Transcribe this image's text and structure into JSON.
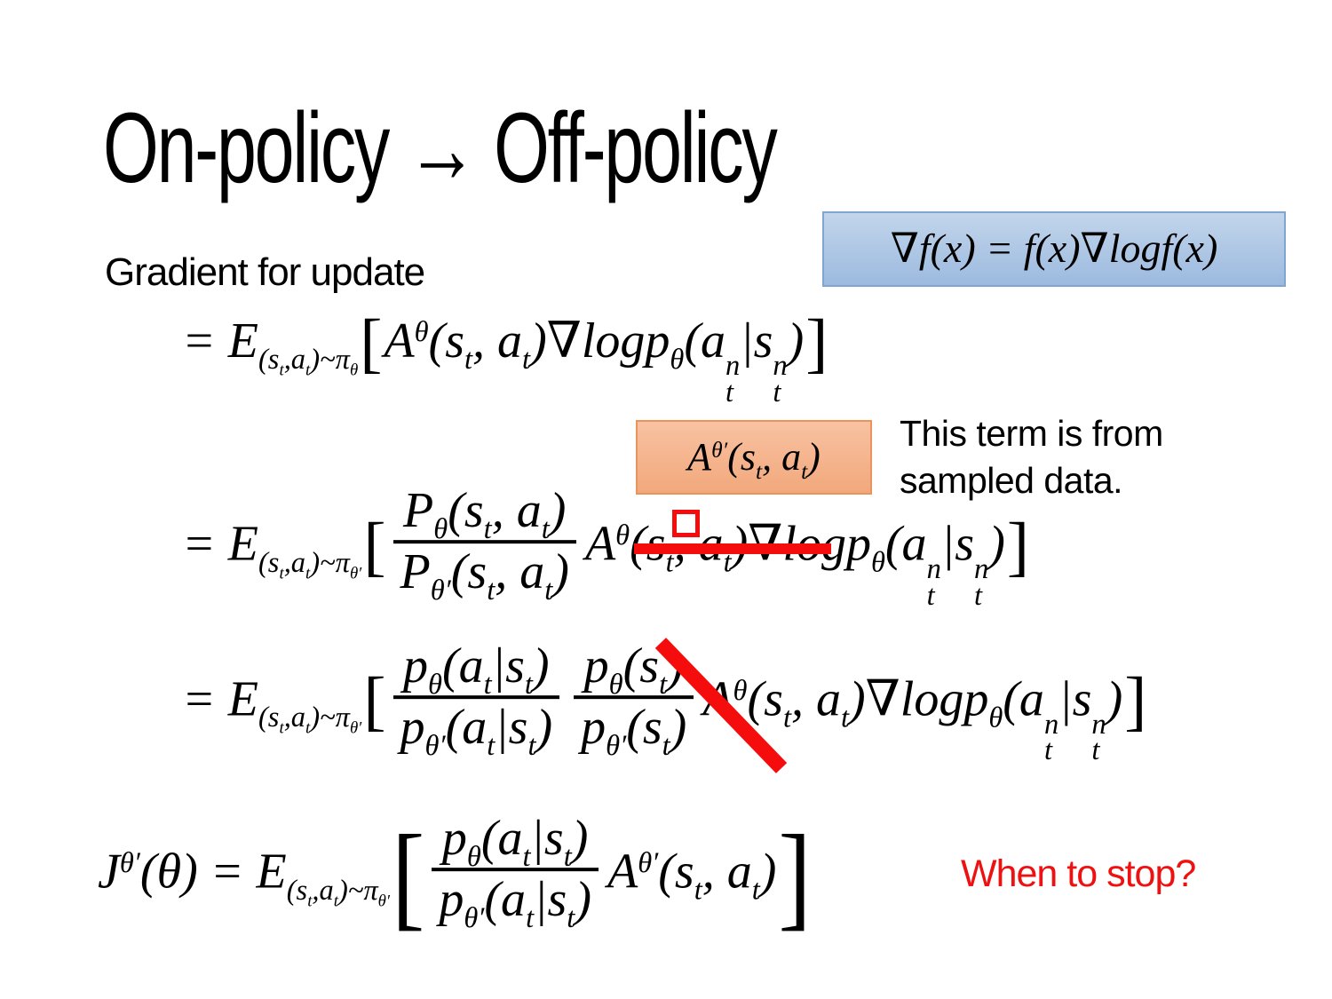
{
  "slide": {
    "title": "On-policy → Off-policy",
    "gradient_label": "Gradient for update",
    "note_line1": "This term is from",
    "note_line2": "sampled data.",
    "when_to_stop": "When to stop?"
  },
  "colors": {
    "annotation_red": "#f50d0d",
    "question_red": "#ee1111",
    "blue_box_fill_top": "#c2d5eb",
    "blue_box_fill_bottom": "#9cbadf",
    "blue_box_border": "#7fa5d2",
    "orange_box_fill_top": "#f8c2a2",
    "orange_box_fill_bottom": "#f2a87c",
    "orange_box_border": "#e9945c",
    "text_black": "#000000"
  },
  "equations": {
    "identity": [
      "∇f(x) = f(x)∇logf(x)"
    ],
    "advantage": [
      "A",
      {
        "sup": "θ′"
      },
      "(s",
      {
        "sub": "t"
      },
      ", a",
      {
        "sub": "t"
      },
      ")"
    ],
    "eq1": [
      "= E",
      {
        "sub": [
          "(s",
          {
            "sub": "t"
          },
          ",a",
          {
            "sub": "t"
          },
          ")~π",
          {
            "sub": "θ"
          }
        ]
      },
      {
        "br": "[",
        "size": "md"
      },
      "A",
      {
        "sup": "θ"
      },
      "(s",
      {
        "sub": "t"
      },
      ", a",
      {
        "sub": "t"
      },
      ")∇logp",
      {
        "sub": "θ"
      },
      "(a",
      {
        "ss": {
          "sup": "n",
          "sub": "t"
        }
      },
      "|s",
      {
        "ss": {
          "sup": "n",
          "sub": "t"
        }
      },
      ")",
      {
        "br": "]",
        "size": "md"
      }
    ],
    "eq2": [
      "= E",
      {
        "sub": [
          "(s",
          {
            "sub": "t"
          },
          ",a",
          {
            "sub": "t"
          },
          ")~π",
          {
            "sub": "θ′"
          }
        ]
      },
      {
        "br": "[",
        "size": "md"
      },
      {
        "frac": {
          "num": [
            "P",
            {
              "sub": "θ"
            },
            "(s",
            {
              "sub": "t"
            },
            ", a",
            {
              "sub": "t"
            },
            ")"
          ],
          "den": [
            "P",
            {
              "sub": "θ′"
            },
            "(s",
            {
              "sub": "t"
            },
            ", a",
            {
              "sub": "t"
            },
            ")"
          ]
        }
      },
      "A",
      {
        "sup": "θ"
      },
      "(s",
      {
        "sub": "t"
      },
      ", a",
      {
        "sub": "t"
      },
      ")∇logp",
      {
        "sub": "θ"
      },
      "(a",
      {
        "ss": {
          "sup": "n",
          "sub": "t"
        }
      },
      "|s",
      {
        "ss": {
          "sup": "n",
          "sub": "t"
        }
      },
      ")",
      {
        "br": "]",
        "size": "md"
      }
    ],
    "eq3": [
      "= E",
      {
        "sub": [
          "(s",
          {
            "sub": "t"
          },
          ",a",
          {
            "sub": "t"
          },
          ")~π",
          {
            "sub": "θ′"
          }
        ]
      },
      {
        "br": "[",
        "size": "md"
      },
      {
        "frac": {
          "num": [
            "p",
            {
              "sub": "θ"
            },
            "(a",
            {
              "sub": "t"
            },
            "|s",
            {
              "sub": "t"
            },
            ")"
          ],
          "den": [
            "p",
            {
              "sub": "θ′"
            },
            "(a",
            {
              "sub": "t"
            },
            "|s",
            {
              "sub": "t"
            },
            ")"
          ]
        }
      },
      {
        "frac": {
          "num": [
            "p",
            {
              "sub": "θ"
            },
            "(s",
            {
              "sub": "t"
            },
            ")"
          ],
          "den": [
            "p",
            {
              "sub": "θ′"
            },
            "(s",
            {
              "sub": "t"
            },
            ")"
          ]
        }
      },
      "A",
      {
        "sup": "θ"
      },
      "(s",
      {
        "sub": "t"
      },
      ", a",
      {
        "sub": "t"
      },
      ")∇logp",
      {
        "sub": "θ"
      },
      "(a",
      {
        "ss": {
          "sup": "n",
          "sub": "t"
        }
      },
      "|s",
      {
        "ss": {
          "sup": "n",
          "sub": "t"
        }
      },
      ")",
      {
        "br": "]",
        "size": "md"
      }
    ],
    "eq4": [
      "J",
      {
        "sup": "θ′"
      },
      "(θ) =  E",
      {
        "sub": [
          "(s",
          {
            "sub": "t"
          },
          ",a",
          {
            "sub": "t"
          },
          ")~π",
          {
            "sub": "θ′"
          }
        ]
      },
      {
        "br": "[",
        "size": "lg"
      },
      {
        "frac": {
          "num": [
            "p",
            {
              "sub": "θ"
            },
            "(a",
            {
              "sub": "t"
            },
            "|s",
            {
              "sub": "t"
            },
            ")"
          ],
          "den": [
            "p",
            {
              "sub": "θ′"
            },
            "(a",
            {
              "sub": "t"
            },
            "|s",
            {
              "sub": "t"
            },
            ")"
          ]
        }
      },
      "A",
      {
        "sup": "θ′"
      },
      "(s",
      {
        "sub": "t"
      },
      ", a",
      {
        "sub": "t"
      },
      ")",
      {
        "br": "]",
        "size": "lg"
      }
    ]
  }
}
